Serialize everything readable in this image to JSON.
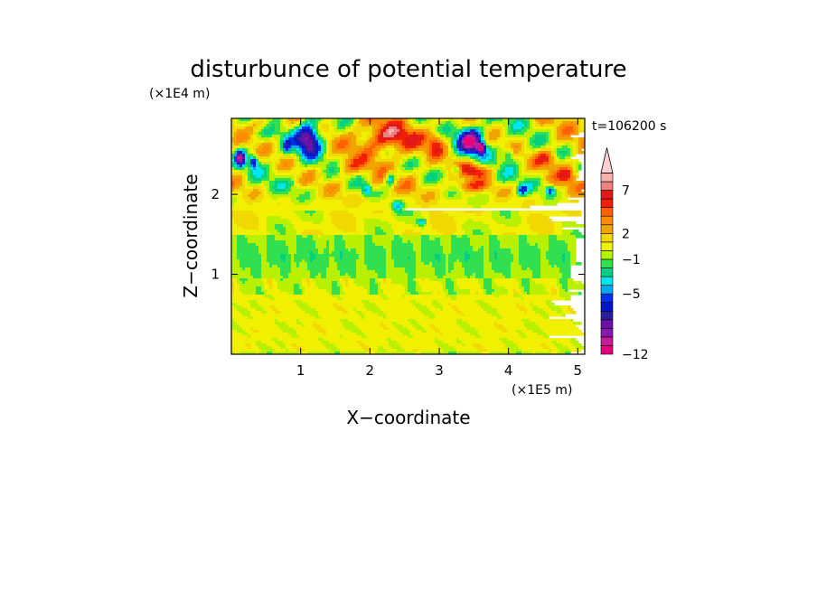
{
  "chart_data": {
    "type": "heatmap",
    "title": "disturbunce of potential temperature",
    "time_label": "t=106200 s",
    "xlabel": "X−coordinate",
    "ylabel": "Z−coordinate",
    "x_unit": "(×1E5 m)",
    "y_unit": "(×1E4 m)",
    "xlim": [
      0,
      5.1
    ],
    "ylim": [
      0,
      2.95
    ],
    "x_ticks": [
      1,
      2,
      3,
      4,
      5
    ],
    "x_tick_labels": [
      "1",
      "2",
      "3",
      "4",
      "5"
    ],
    "y_ticks": [
      1,
      2
    ],
    "y_tick_labels": [
      "1",
      "2"
    ],
    "colorbar": {
      "levels": [
        -12,
        -11,
        -10,
        -9,
        -8,
        -7,
        -6,
        -5,
        -4,
        -3,
        -2,
        -1,
        0,
        1,
        2,
        3,
        4,
        5,
        6,
        7,
        8,
        9,
        10
      ],
      "colors": [
        "#e6007e",
        "#c61c9a",
        "#8a18b0",
        "#6a12a8",
        "#2a1ea0",
        "#0018c8",
        "#0030e8",
        "#00a8f0",
        "#00e6f0",
        "#00d080",
        "#30e050",
        "#b8f000",
        "#f0f000",
        "#f0d800",
        "#f0a400",
        "#ff8c00",
        "#ff6000",
        "#f02000",
        "#e01818",
        "#f08080",
        "#f8b0b0",
        "#ffd0d0"
      ],
      "tick_values": [
        7,
        2,
        -1,
        -5,
        -12
      ],
      "tick_labels": [
        "7",
        "2",
        "−1",
        "−5",
        "−12"
      ],
      "extend": "max"
    },
    "grid": false
  }
}
